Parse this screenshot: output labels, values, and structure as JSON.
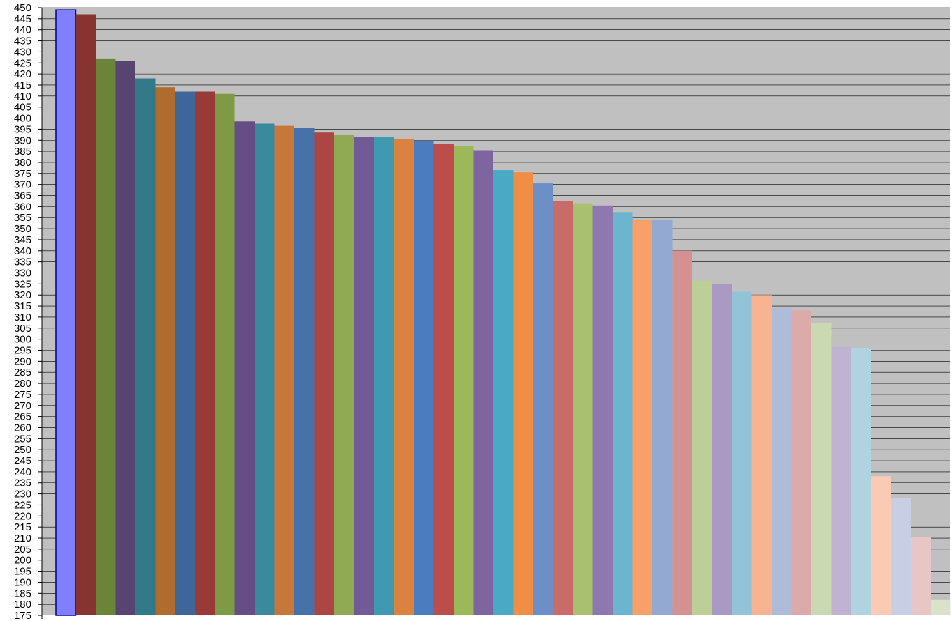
{
  "chart_data": {
    "type": "bar",
    "title": "",
    "xlabel": "",
    "ylabel": "",
    "ylim": [
      175,
      450
    ],
    "ytick_step": 5,
    "grid": true,
    "legend": "none",
    "plot_background": "#c0c0c0",
    "gridline_color": "#000000",
    "values": [
      449,
      447,
      427,
      426,
      418,
      414,
      412,
      412,
      411,
      398.5,
      397.5,
      396.5,
      395.5,
      393.5,
      392.5,
      391.5,
      391.5,
      390.5,
      389.5,
      388.5,
      387.5,
      385.5,
      376.5,
      375.5,
      370.5,
      362.5,
      361.5,
      360.5,
      357.5,
      354,
      354,
      340,
      326.5,
      325,
      321.5,
      320,
      314,
      313,
      307.5,
      296.5,
      296,
      238,
      228,
      210.5,
      182
    ],
    "colors": [
      "#8080ff",
      "#87332f",
      "#6b843a",
      "#574470",
      "#327a8a",
      "#b06b2e",
      "#3f6699",
      "#983b38",
      "#7f9a44",
      "#654e85",
      "#3a8a9e",
      "#c8773a",
      "#4672a8",
      "#ac4645",
      "#8faa52",
      "#725a96",
      "#4198b1",
      "#db823f",
      "#4a7cbf",
      "#bc4d4b",
      "#9bb85a",
      "#7e65a0",
      "#4aa9c5",
      "#f18e46",
      "#6b8fc6",
      "#c86b69",
      "#a8c06f",
      "#8d78b0",
      "#6bb5cf",
      "#f7a068",
      "#93a9d2",
      "#d39291",
      "#bccf98",
      "#a999c3",
      "#92c3d6",
      "#f8b393",
      "#aebcda",
      "#dcaaaa",
      "#cbd9b2",
      "#bfb3d1",
      "#b0d4df",
      "#fbcab3",
      "#c8cfe4",
      "#e9c6c6",
      "#d9e3c9"
    ],
    "ytick_labels": [
      "450",
      "445",
      "440",
      "435",
      "430",
      "425",
      "420",
      "415",
      "410",
      "405",
      "400",
      "395",
      "390",
      "385",
      "380",
      "375",
      "370",
      "365",
      "360",
      "355",
      "350",
      "345",
      "340",
      "335",
      "330",
      "325",
      "320",
      "315",
      "310",
      "305",
      "300",
      "295",
      "290",
      "285",
      "280",
      "275",
      "270",
      "265",
      "260",
      "255",
      "250",
      "245",
      "240",
      "235",
      "230",
      "225",
      "220",
      "215",
      "210",
      "205",
      "200",
      "195",
      "190",
      "185",
      "180",
      "175"
    ]
  }
}
